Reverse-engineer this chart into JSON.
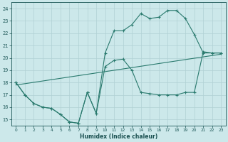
{
  "xlabel": "Humidex (Indice chaleur)",
  "bg_color": "#cce8ea",
  "grid_color": "#b0d0d4",
  "line_color": "#2a7a6e",
  "xlim": [
    -0.5,
    23.5
  ],
  "ylim": [
    14.5,
    24.5
  ],
  "xticks": [
    0,
    1,
    2,
    3,
    4,
    5,
    6,
    7,
    8,
    9,
    10,
    11,
    12,
    13,
    14,
    15,
    16,
    17,
    18,
    19,
    20,
    21,
    22,
    23
  ],
  "yticks": [
    15,
    16,
    17,
    18,
    19,
    20,
    21,
    22,
    23,
    24
  ],
  "line1_x": [
    0,
    1,
    2,
    3,
    4,
    5,
    6,
    7,
    8,
    9,
    10,
    11,
    12,
    13,
    14,
    15,
    16,
    17,
    18,
    19,
    20,
    21,
    22,
    23
  ],
  "line1_y": [
    18,
    17,
    16.3,
    16,
    15.9,
    15.4,
    14.8,
    14.7,
    17.2,
    15.5,
    20.4,
    22.2,
    22.2,
    22.7,
    23.6,
    23.2,
    23.3,
    23.85,
    23.85,
    23.2,
    21.9,
    20.4,
    20.4,
    20.4
  ],
  "line2_x": [
    0,
    1,
    2,
    3,
    4,
    5,
    6,
    7,
    8,
    9,
    10,
    11,
    12,
    13,
    14,
    15,
    16,
    17,
    18,
    19,
    20,
    21,
    22,
    23
  ],
  "line2_y": [
    18,
    17,
    16.3,
    16,
    15.9,
    15.4,
    14.8,
    14.7,
    17.2,
    15.5,
    19.3,
    19.8,
    19.9,
    19.0,
    17.2,
    17.1,
    17.0,
    17.0,
    17.0,
    17.2,
    17.2,
    20.5,
    20.4,
    20.4
  ],
  "line3_x": [
    0,
    23
  ],
  "line3_y": [
    17.8,
    20.3
  ]
}
